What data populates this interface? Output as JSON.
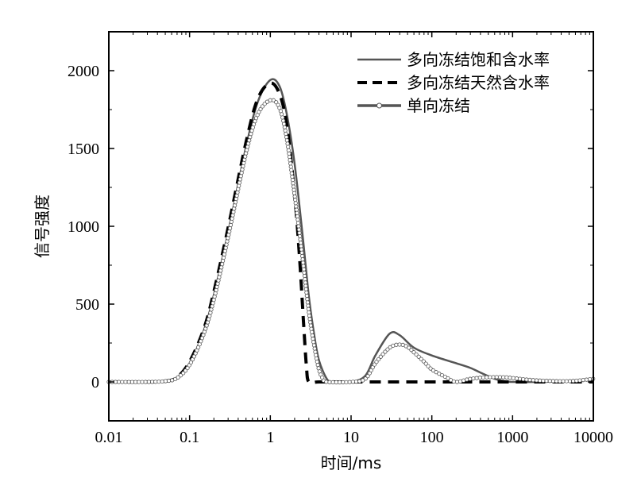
{
  "chart_data": {
    "type": "line",
    "title": "",
    "xlabel": "时间/ms",
    "ylabel": "信号强度",
    "xscale": "log",
    "xlim": [
      0.01,
      10000
    ],
    "ylim": [
      -250,
      2250
    ],
    "xticks": [
      0.01,
      0.1,
      1,
      10,
      100,
      1000,
      10000
    ],
    "xtick_labels": [
      "0.01",
      "0.1",
      "1",
      "10",
      "100",
      "1000",
      "10000"
    ],
    "yticks": [
      0,
      500,
      1000,
      1500,
      2000
    ],
    "ytick_labels": [
      "0",
      "500",
      "1000",
      "1500",
      "2000"
    ],
    "grid": false,
    "legend_position": "top-right",
    "series": [
      {
        "name": "多向冻结饱和含水率",
        "style": "solid",
        "color": "#555555",
        "x": [
          0.01,
          0.03,
          0.05,
          0.07,
          0.1,
          0.15,
          0.2,
          0.3,
          0.5,
          0.7,
          1.0,
          1.3,
          1.6,
          2.0,
          2.5,
          3.0,
          3.5,
          4.0,
          5.0,
          6.0,
          10,
          15,
          20,
          30,
          40,
          60,
          100,
          200,
          300,
          400,
          600,
          800,
          1000,
          2000,
          5000,
          10000
        ],
        "y": [
          0,
          0,
          5,
          30,
          120,
          330,
          560,
          960,
          1510,
          1800,
          1940,
          1900,
          1720,
          1400,
          950,
          550,
          300,
          140,
          20,
          0,
          0,
          40,
          170,
          310,
          300,
          220,
          170,
          120,
          90,
          60,
          20,
          5,
          0,
          0,
          5,
          20
        ]
      },
      {
        "name": "多向冻结天然含水率",
        "style": "dashed",
        "color": "#000000",
        "x": [
          0.01,
          0.03,
          0.05,
          0.07,
          0.1,
          0.15,
          0.2,
          0.3,
          0.5,
          0.7,
          1.0,
          1.3,
          1.6,
          2.0,
          2.3,
          2.6,
          2.8,
          3.0,
          4.0,
          10,
          100,
          1000,
          10000
        ],
        "y": [
          0,
          0,
          5,
          30,
          130,
          340,
          580,
          990,
          1540,
          1820,
          1920,
          1850,
          1650,
          1200,
          800,
          350,
          100,
          0,
          0,
          0,
          0,
          0,
          0
        ]
      },
      {
        "name": "单向冻结",
        "style": "solid-marker",
        "color": "#555555",
        "x": [
          0.01,
          0.03,
          0.05,
          0.07,
          0.1,
          0.15,
          0.2,
          0.3,
          0.5,
          0.7,
          1.0,
          1.3,
          1.6,
          2.0,
          2.5,
          3.0,
          3.5,
          4.0,
          4.5,
          5.0,
          10,
          15,
          20,
          30,
          40,
          50,
          60,
          80,
          100,
          150,
          200,
          300,
          500,
          800,
          1000,
          2000,
          5000,
          10000
        ],
        "y": [
          0,
          0,
          5,
          25,
          110,
          310,
          530,
          930,
          1470,
          1720,
          1810,
          1760,
          1560,
          1200,
          800,
          450,
          230,
          80,
          20,
          0,
          0,
          20,
          120,
          220,
          240,
          225,
          190,
          130,
          80,
          30,
          0,
          20,
          30,
          30,
          25,
          10,
          5,
          20
        ]
      }
    ]
  }
}
